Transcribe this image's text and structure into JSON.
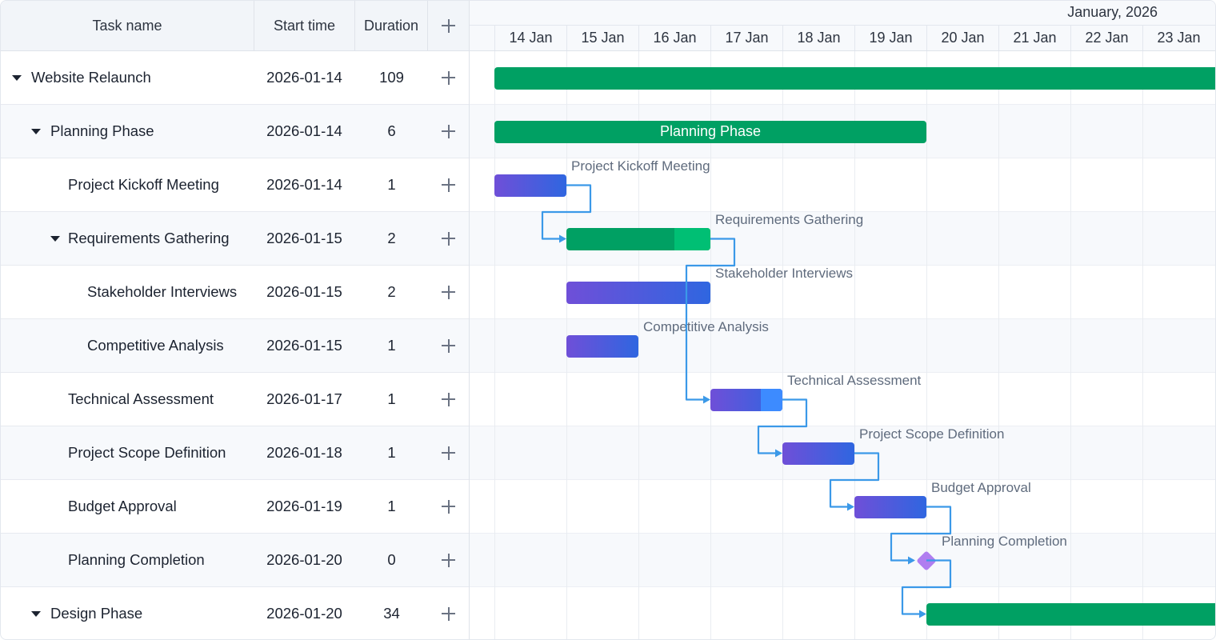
{
  "grid": {
    "headers": {
      "name": "Task name",
      "start": "Start time",
      "duration": "Duration"
    },
    "rows": [
      {
        "name": "Website Relaunch",
        "start": "2026-01-14",
        "duration": "109",
        "level": 0,
        "collapsible": true
      },
      {
        "name": "Planning Phase",
        "start": "2026-01-14",
        "duration": "6",
        "level": 1,
        "collapsible": true
      },
      {
        "name": "Project Kickoff Meeting",
        "start": "2026-01-14",
        "duration": "1",
        "level": 2,
        "collapsible": false
      },
      {
        "name": "Requirements Gathering",
        "start": "2026-01-15",
        "duration": "2",
        "level": 2,
        "collapsible": true
      },
      {
        "name": "Stakeholder Interviews",
        "start": "2026-01-15",
        "duration": "2",
        "level": 3,
        "collapsible": false
      },
      {
        "name": "Competitive Analysis",
        "start": "2026-01-15",
        "duration": "1",
        "level": 3,
        "collapsible": false
      },
      {
        "name": "Technical Assessment",
        "start": "2026-01-17",
        "duration": "1",
        "level": 2,
        "collapsible": false
      },
      {
        "name": "Project Scope Definition",
        "start": "2026-01-18",
        "duration": "1",
        "level": 2,
        "collapsible": false
      },
      {
        "name": "Budget Approval",
        "start": "2026-01-19",
        "duration": "1",
        "level": 2,
        "collapsible": false
      },
      {
        "name": "Planning Completion",
        "start": "2026-01-20",
        "duration": "0",
        "level": 2,
        "collapsible": false
      },
      {
        "name": "Design Phase",
        "start": "2026-01-20",
        "duration": "34",
        "level": 1,
        "collapsible": true
      }
    ]
  },
  "timeline": {
    "month": "January, 2026",
    "days": [
      "14 Jan",
      "15 Jan",
      "16 Jan",
      "17 Jan",
      "18 Jan",
      "19 Jan",
      "20 Jan",
      "21 Jan",
      "22 Jan",
      "23 Jan"
    ],
    "bars": [
      {
        "row": 0,
        "type": "project",
        "start_day": 0,
        "days": 109,
        "label": "",
        "label_inside": false
      },
      {
        "row": 1,
        "type": "project",
        "start_day": 0,
        "days": 6,
        "label": "Planning Phase",
        "label_inside": true
      },
      {
        "row": 2,
        "type": "task",
        "start_day": 0,
        "days": 1,
        "label": "Project Kickoff Meeting"
      },
      {
        "row": 3,
        "type": "project",
        "start_day": 1,
        "days": 2,
        "progress": 0.75,
        "label": "Requirements Gathering"
      },
      {
        "row": 4,
        "type": "task",
        "start_day": 1,
        "days": 2,
        "label": "Stakeholder Interviews"
      },
      {
        "row": 5,
        "type": "task",
        "start_day": 1,
        "days": 1,
        "label": "Competitive Analysis"
      },
      {
        "row": 6,
        "type": "task",
        "start_day": 3,
        "days": 1,
        "progress": 0.7,
        "label": "Technical Assessment"
      },
      {
        "row": 7,
        "type": "task",
        "start_day": 4,
        "days": 1,
        "label": "Project Scope Definition"
      },
      {
        "row": 8,
        "type": "task",
        "start_day": 5,
        "days": 1,
        "label": "Budget Approval"
      },
      {
        "row": 9,
        "type": "milestone",
        "start_day": 6,
        "days": 0,
        "label": "Planning Completion"
      },
      {
        "row": 10,
        "type": "project",
        "start_day": 6,
        "days": 34,
        "label": ""
      }
    ],
    "links": [
      {
        "from": 2,
        "to": 3
      },
      {
        "from": 3,
        "to": 6
      },
      {
        "from": 6,
        "to": 7
      },
      {
        "from": 7,
        "to": 8
      },
      {
        "from": 8,
        "to": 9
      },
      {
        "from": 9,
        "to": 10
      }
    ]
  },
  "colors": {
    "project_bar": "#00a063",
    "project_progress": "#00bf74",
    "task_start": "#6f4fd8",
    "task_end": "#2f66e0",
    "task_progress": "#3d8bff",
    "link": "#3b99e8",
    "milestone": "#b07ef0"
  },
  "icons": {
    "add": "plus-icon",
    "expand": "caret-down-icon"
  }
}
